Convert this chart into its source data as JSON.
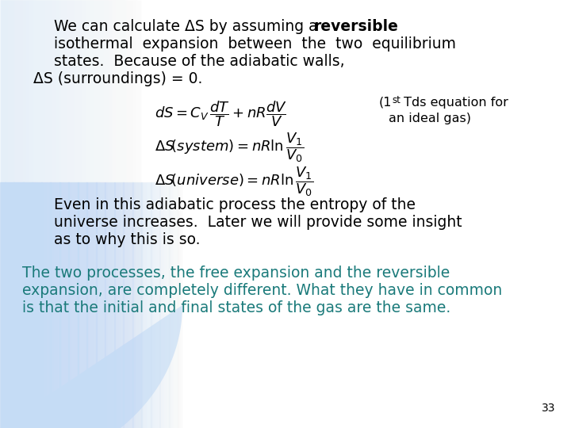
{
  "background_color": "#ffffff",
  "text_color_black": "#000000",
  "text_color_teal": "#1a7a7a",
  "page_number": "33",
  "p1_l1_normal": "We can calculate ΔS by assuming a ",
  "p1_l1_bold": "reversible",
  "p1_l2": "isothermal  expansion  between  the  two  equilibrium",
  "p1_l3": "states.  Because of the adiabatic walls,",
  "p1_l4": "ΔS (surroundings) = 0.",
  "eq1": "$dS = C_V \\, \\dfrac{dT}{T} + nR\\dfrac{dV}{V}$",
  "eq2": "$\\Delta S\\!\\left(system\\right)= nR\\ln\\dfrac{V_1}{V_0}$",
  "eq3": "$\\Delta S\\!\\left(universe\\right)= nR\\ln\\dfrac{V_1}{V_0}$",
  "ann1": "(1",
  "ann_sup": "st",
  "ann2": " Tds equation for",
  "ann3": "an ideal gas)",
  "p2_l1": "Even in this adiabatic process the entropy of the",
  "p2_l2": "universe increases.  Later we will provide some insight",
  "p2_l3": "as to why this is so.",
  "p3_l1": "The two processes, the free expansion and the reversible",
  "p3_l2": "expansion, are completely different. What they have in common",
  "p3_l3": "is that the initial and final states of the gas are the same.",
  "grad_light": "#c5dcf5",
  "grad_mid": "#ddeeff"
}
